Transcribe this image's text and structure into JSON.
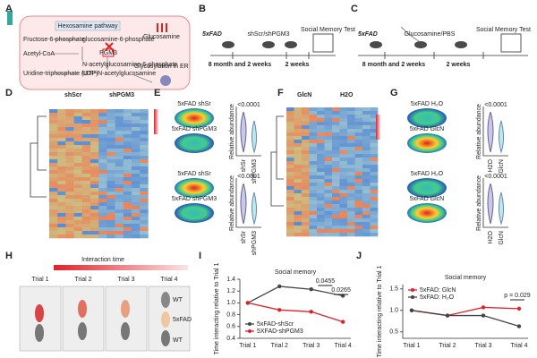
{
  "panel_labels": [
    "A",
    "B",
    "C",
    "D",
    "E",
    "F",
    "G",
    "H",
    "I",
    "J"
  ],
  "panel_a": {
    "pathway": "Hexosamine pathway",
    "glucosamine": "Glucosamine",
    "enzyme": "PGM3",
    "metabolites": [
      "Fructose-6-phosphate",
      "glucosamine-6-phosphate",
      "Acetyl-CoA",
      "N-acetylglucosamine-6-phosphate",
      "Uridine-triphosphate (UTP)",
      "UDP-N-acetylglucosamine"
    ],
    "glycosylation": "Glycosylation in ER"
  },
  "panel_b": {
    "mouse": "5xFAD",
    "treatment": "shScr/shPGM3",
    "test": "Social Memory Test",
    "age": "8 month and 2 weeks",
    "duration": "2 weeks"
  },
  "panel_c": {
    "mouse": "5xFAD",
    "treatment": "Glucosamine/PBS",
    "test": "Social Memory Test",
    "age": "8 month and 2 weeks",
    "duration": "2 weeks"
  },
  "panel_d": {
    "groups": [
      "shScr",
      "shPGM3"
    ]
  },
  "panel_e": {
    "images": [
      "5xFAD shSr",
      "5xFAD shPGM3",
      "5xFAD shSr",
      "5xFAD shPGM3"
    ],
    "p_values": [
      "<0.0001",
      "<0.0001"
    ],
    "ylabel": "Relative abundance",
    "groups": [
      "shSr",
      "shPGM3"
    ]
  },
  "panel_f": {
    "groups": [
      "GlcN",
      "H2O"
    ]
  },
  "panel_g": {
    "images": [
      "5xFAD H₂O",
      "5xFAD GlcN",
      "5xFAD H₂O",
      "5xFAD GlcN"
    ],
    "p_values": [
      "<0.0001",
      "<0.0001"
    ],
    "ylabel": "Relative abundance",
    "groups": [
      "H2O",
      "GlcN"
    ]
  },
  "panel_h": {
    "title": "Interaction time",
    "trials": [
      "Trial 1",
      "Trial 2",
      "Trial 3",
      "Trial 4"
    ],
    "mice": [
      "WT",
      "5xFAD",
      "WT"
    ]
  },
  "chart_data": [
    {
      "type": "line",
      "title": "Social memory",
      "ylabel": "Time interacting relative to Trial 1",
      "categories": [
        "Trial 1",
        "Trial 2",
        "Trial 3",
        "Trial 4"
      ],
      "ylim": [
        0.4,
        1.4
      ],
      "yticks": [
        0.4,
        0.6,
        0.8,
        {
          "value": 1.0,
          "label": "1.0"
        },
        1.2,
        1.4
      ],
      "series": [
        {
          "name": "5xFAD-shScr",
          "color": "#444444",
          "values": [
            1.0,
            1.28,
            1.23,
            1.12
          ]
        },
        {
          "name": "5XFAD-shPGM3",
          "color": "#e0202a",
          "values": [
            1.0,
            0.88,
            0.85,
            0.68
          ]
        }
      ],
      "annotations": [
        "0.0455",
        "0.0265"
      ],
      "legend": "lower left"
    },
    {
      "type": "line",
      "title": "Social memory",
      "ylabel": "Time interacting relative to Trial 1",
      "categories": [
        "Trial 1",
        "Trial 2",
        "Trial 3",
        "Trial 4"
      ],
      "ylim": [
        0.35,
        1.6
      ],
      "yticks": [
        0.5,
        {
          "value": 1.0,
          "label": "1.0"
        },
        1.5
      ],
      "series": [
        {
          "name": "5xFAD: GlcN",
          "color": "#e0202a",
          "values": [
            1.0,
            0.88,
            1.07,
            1.04
          ]
        },
        {
          "name": "5xFAD: H₂O",
          "color": "#444444",
          "values": [
            1.0,
            0.88,
            0.88,
            0.63
          ]
        }
      ],
      "annotations": [
        "p = 0.029"
      ],
      "legend": "upper left"
    }
  ]
}
